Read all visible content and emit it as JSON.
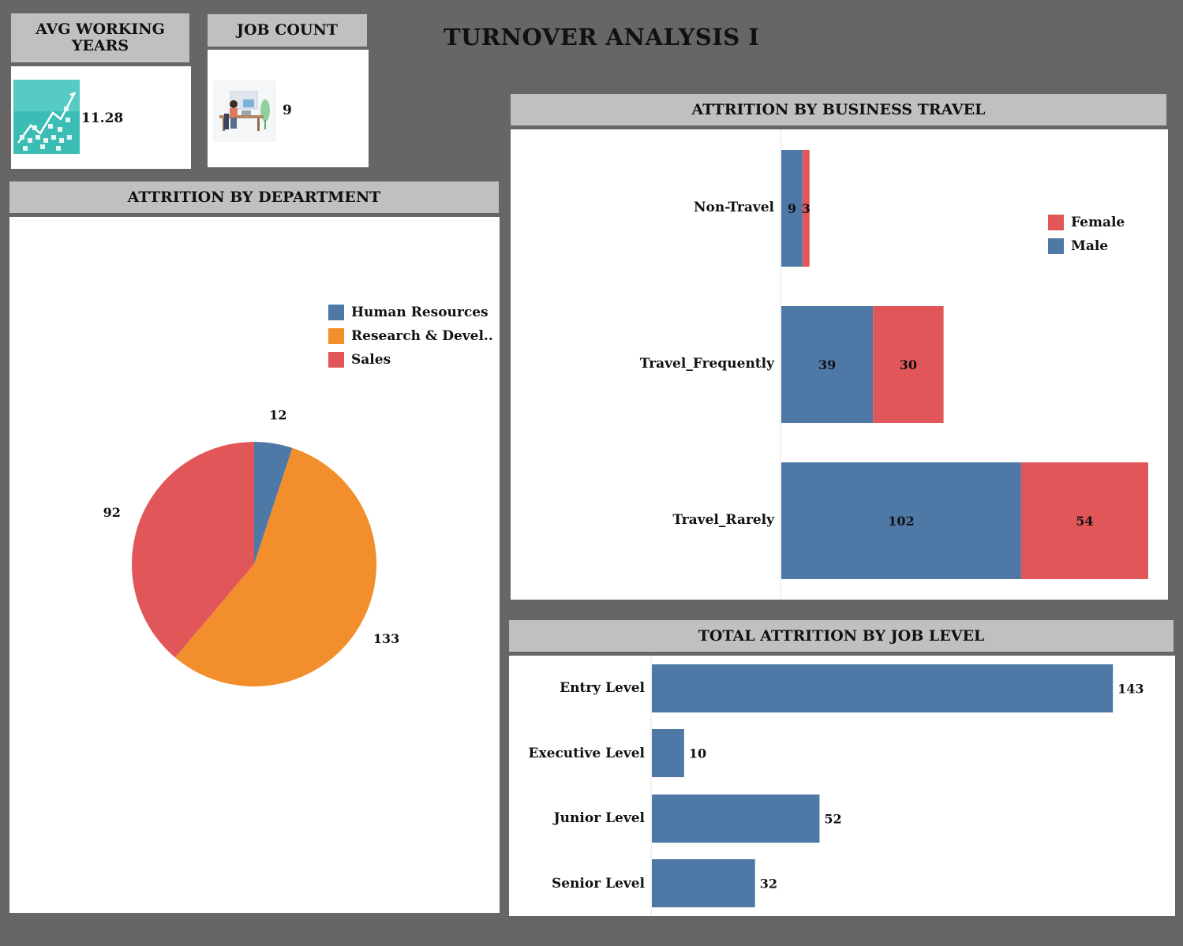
{
  "title": "TURNOVER ANALYSIS I",
  "kpis": {
    "avg_working_years": {
      "label": "AVG WORKING YEARS",
      "value": "11.28",
      "icon": "growth-chart-icon"
    },
    "job_count": {
      "label": "JOB COUNT",
      "value": "9",
      "icon": "office-worker-icon"
    }
  },
  "colors": {
    "blue": "#4e79a7",
    "orange": "#f28e2b",
    "red": "#e15759",
    "background": "#666666",
    "header": "#c0c0c0",
    "panel": "#ffffff"
  },
  "chart_data": [
    {
      "id": "department",
      "type": "pie",
      "title": "ATTRITION BY DEPARTMENT",
      "labels": [
        "Human Resources",
        "Research & Devel..",
        "Sales"
      ],
      "values": [
        12,
        133,
        92
      ],
      "colors": [
        "#4e79a7",
        "#f28e2b",
        "#e15759"
      ],
      "legend_position": "top-right"
    },
    {
      "id": "business_travel",
      "type": "bar",
      "orientation": "horizontal",
      "stacked": true,
      "title": "ATTRITION BY BUSINESS TRAVEL",
      "categories": [
        "Non-Travel",
        "Travel_Frequently",
        "Travel_Rarely"
      ],
      "series": [
        {
          "name": "Male",
          "values": [
            9,
            39,
            102
          ],
          "color": "#4e79a7"
        },
        {
          "name": "Female",
          "values": [
            3,
            30,
            54
          ],
          "color": "#e15759"
        }
      ],
      "legend": [
        "Female",
        "Male"
      ],
      "legend_position": "top-right",
      "xlim": [
        0,
        160
      ]
    },
    {
      "id": "job_level",
      "type": "bar",
      "orientation": "horizontal",
      "title": "TOTAL ATTRITION BY JOB LEVEL",
      "categories": [
        "Entry Level",
        "Executive Level",
        "Junior Level",
        "Senior Level"
      ],
      "values": [
        143,
        10,
        52,
        32
      ],
      "color": "#4e79a7",
      "xlim": [
        0,
        150
      ]
    }
  ]
}
